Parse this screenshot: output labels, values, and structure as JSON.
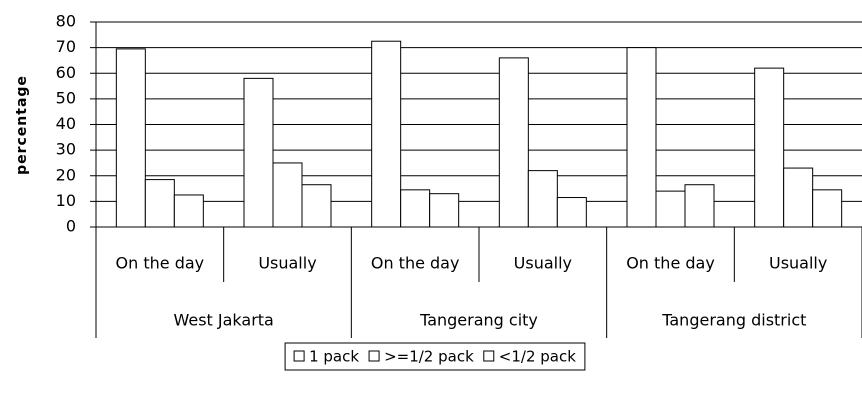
{
  "chart_data": {
    "type": "bar",
    "y_label": "percentage",
    "categories": [
      "On the day",
      "Usually",
      "On the day",
      "Usually",
      "On the day",
      "Usually"
    ],
    "groups": [
      "West Jakarta",
      "Tangerang city",
      "Tangerang district"
    ],
    "series": [
      {
        "name": "1 pack",
        "color": "#ffffff",
        "values": [
          69.5,
          58,
          72.5,
          66,
          70,
          62
        ]
      },
      {
        "name": ">=1/2 pack",
        "color": "#ffffff",
        "values": [
          18.5,
          25,
          14.5,
          22,
          14,
          23
        ]
      },
      {
        "name": "<1/2 pack",
        "color": "#ffffff",
        "values": [
          12.5,
          16.5,
          13,
          11.5,
          16.5,
          14.5
        ]
      }
    ],
    "ylim": [
      0,
      80
    ],
    "yticks": [
      0,
      10,
      20,
      30,
      40,
      50,
      60,
      70,
      80
    ],
    "grid": true,
    "legend": "bottom"
  }
}
